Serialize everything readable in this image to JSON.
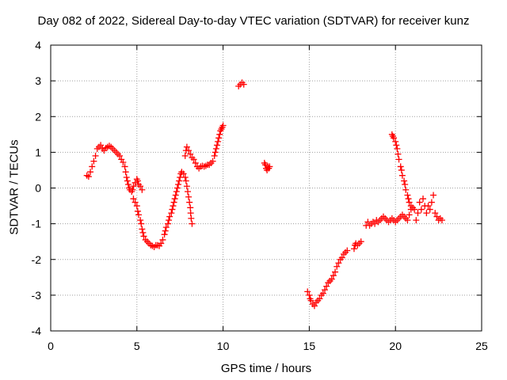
{
  "chart_data": {
    "type": "scatter",
    "title": "Day 082 of 2022, Sidereal Day-to-day VTEC variation (SDTVAR) for receiver kunz",
    "xlabel": "GPS time / hours",
    "ylabel": "SDTVAR / TECUs",
    "xlim": [
      0,
      25
    ],
    "ylim": [
      -4,
      4
    ],
    "xticks": [
      "0",
      "5",
      "10",
      "15",
      "20",
      "25"
    ],
    "yticks": [
      "-4",
      "-3",
      "-2",
      "-1",
      "0",
      "1",
      "2",
      "3",
      "4"
    ],
    "grid": true,
    "marker": "+",
    "color": "#ff0000",
    "series": [
      {
        "points": [
          [
            2.1,
            0.35
          ],
          [
            2.2,
            0.32
          ],
          [
            2.3,
            0.45
          ],
          [
            2.4,
            0.6
          ],
          [
            2.5,
            0.75
          ],
          [
            2.6,
            0.9
          ],
          [
            2.7,
            1.1
          ],
          [
            2.8,
            1.15
          ],
          [
            2.9,
            1.2
          ],
          [
            3.0,
            1.1
          ],
          [
            3.1,
            1.05
          ],
          [
            3.2,
            1.12
          ],
          [
            3.3,
            1.15
          ],
          [
            3.4,
            1.18
          ],
          [
            3.5,
            1.15
          ],
          [
            3.6,
            1.1
          ],
          [
            3.7,
            1.05
          ],
          [
            3.8,
            1.0
          ],
          [
            3.9,
            0.95
          ],
          [
            4.0,
            0.9
          ],
          [
            4.1,
            0.8
          ],
          [
            4.2,
            0.72
          ],
          [
            4.3,
            0.6
          ],
          [
            4.35,
            0.45
          ],
          [
            4.4,
            0.3
          ],
          [
            4.45,
            0.2
          ],
          [
            4.5,
            0.1
          ],
          [
            4.55,
            0.0
          ],
          [
            4.6,
            -0.05
          ],
          [
            4.7,
            -0.1
          ],
          [
            4.75,
            -0.05
          ],
          [
            4.8,
            0.05
          ],
          [
            4.9,
            0.15
          ],
          [
            5.0,
            0.25
          ],
          [
            5.05,
            0.2
          ],
          [
            5.1,
            0.1
          ],
          [
            5.2,
            0.05
          ],
          [
            5.3,
            -0.05
          ],
          [
            4.8,
            -0.3
          ],
          [
            4.9,
            -0.4
          ],
          [
            5.0,
            -0.5
          ],
          [
            5.05,
            -0.65
          ],
          [
            5.1,
            -0.75
          ],
          [
            5.2,
            -0.9
          ],
          [
            5.25,
            -1.0
          ],
          [
            5.3,
            -1.15
          ],
          [
            5.35,
            -1.25
          ],
          [
            5.4,
            -1.35
          ],
          [
            5.5,
            -1.45
          ],
          [
            5.6,
            -1.5
          ],
          [
            5.7,
            -1.55
          ],
          [
            5.8,
            -1.6
          ],
          [
            5.9,
            -1.62
          ],
          [
            6.0,
            -1.65
          ],
          [
            6.1,
            -1.6
          ],
          [
            6.2,
            -1.6
          ],
          [
            6.3,
            -1.62
          ],
          [
            6.4,
            -1.55
          ],
          [
            6.5,
            -1.45
          ],
          [
            6.6,
            -1.3
          ],
          [
            6.65,
            -1.2
          ],
          [
            6.7,
            -1.1
          ],
          [
            6.8,
            -1.0
          ],
          [
            6.85,
            -0.9
          ],
          [
            6.9,
            -0.8
          ],
          [
            7.0,
            -0.7
          ],
          [
            7.05,
            -0.6
          ],
          [
            7.1,
            -0.5
          ],
          [
            7.15,
            -0.4
          ],
          [
            7.2,
            -0.3
          ],
          [
            7.25,
            -0.2
          ],
          [
            7.3,
            -0.1
          ],
          [
            7.35,
            0.0
          ],
          [
            7.4,
            0.1
          ],
          [
            7.45,
            0.2
          ],
          [
            7.5,
            0.3
          ],
          [
            7.55,
            0.4
          ],
          [
            7.6,
            0.45
          ],
          [
            7.7,
            0.4
          ],
          [
            7.8,
            0.3
          ],
          [
            7.85,
            0.2
          ],
          [
            7.9,
            0.05
          ],
          [
            7.95,
            -0.1
          ],
          [
            8.0,
            -0.25
          ],
          [
            8.05,
            -0.4
          ],
          [
            8.1,
            -0.55
          ],
          [
            8.12,
            -0.7
          ],
          [
            8.15,
            -0.85
          ],
          [
            8.2,
            -1.0
          ],
          [
            7.8,
            0.9
          ],
          [
            7.85,
            1.05
          ],
          [
            7.9,
            1.15
          ],
          [
            8.0,
            1.05
          ],
          [
            8.1,
            0.95
          ],
          [
            8.2,
            0.85
          ],
          [
            8.3,
            0.8
          ],
          [
            8.4,
            0.7
          ],
          [
            8.5,
            0.6
          ],
          [
            8.6,
            0.55
          ],
          [
            8.7,
            0.6
          ],
          [
            8.8,
            0.62
          ],
          [
            8.9,
            0.6
          ],
          [
            9.0,
            0.62
          ],
          [
            9.1,
            0.65
          ],
          [
            9.2,
            0.65
          ],
          [
            9.3,
            0.7
          ],
          [
            9.4,
            0.75
          ],
          [
            9.5,
            0.9
          ],
          [
            9.55,
            1.0
          ],
          [
            9.6,
            1.1
          ],
          [
            9.65,
            1.2
          ],
          [
            9.7,
            1.3
          ],
          [
            9.75,
            1.4
          ],
          [
            9.8,
            1.5
          ],
          [
            9.85,
            1.6
          ],
          [
            9.9,
            1.65
          ],
          [
            9.95,
            1.7
          ],
          [
            10.0,
            1.75
          ],
          [
            10.9,
            2.85
          ],
          [
            11.0,
            2.9
          ],
          [
            11.1,
            2.95
          ],
          [
            11.2,
            2.9
          ],
          [
            12.4,
            0.7
          ],
          [
            12.45,
            0.65
          ],
          [
            12.5,
            0.55
          ],
          [
            12.55,
            0.5
          ],
          [
            12.6,
            0.6
          ],
          [
            12.65,
            0.55
          ],
          [
            12.7,
            0.6
          ],
          [
            14.9,
            -2.9
          ],
          [
            15.0,
            -3.0
          ],
          [
            15.05,
            -3.1
          ],
          [
            15.1,
            -3.15
          ],
          [
            15.2,
            -3.25
          ],
          [
            15.3,
            -3.3
          ],
          [
            15.4,
            -3.2
          ],
          [
            15.5,
            -3.15
          ],
          [
            15.6,
            -3.1
          ],
          [
            15.7,
            -3.0
          ],
          [
            15.8,
            -2.95
          ],
          [
            15.9,
            -2.85
          ],
          [
            16.0,
            -2.75
          ],
          [
            16.1,
            -2.65
          ],
          [
            16.2,
            -2.6
          ],
          [
            16.3,
            -2.55
          ],
          [
            16.4,
            -2.45
          ],
          [
            16.5,
            -2.35
          ],
          [
            16.6,
            -2.2
          ],
          [
            16.7,
            -2.1
          ],
          [
            16.8,
            -2.0
          ],
          [
            16.9,
            -1.95
          ],
          [
            17.0,
            -1.85
          ],
          [
            17.1,
            -1.8
          ],
          [
            17.2,
            -1.75
          ],
          [
            17.6,
            -1.7
          ],
          [
            17.65,
            -1.6
          ],
          [
            17.7,
            -1.55
          ],
          [
            17.8,
            -1.6
          ],
          [
            17.9,
            -1.55
          ],
          [
            18.0,
            -1.5
          ],
          [
            18.3,
            -1.05
          ],
          [
            18.4,
            -0.95
          ],
          [
            18.5,
            -1.05
          ],
          [
            18.6,
            -1.0
          ],
          [
            18.7,
            -0.95
          ],
          [
            18.8,
            -1.0
          ],
          [
            18.9,
            -0.9
          ],
          [
            19.0,
            -0.95
          ],
          [
            19.1,
            -0.9
          ],
          [
            19.2,
            -0.85
          ],
          [
            19.3,
            -0.8
          ],
          [
            19.4,
            -0.85
          ],
          [
            19.5,
            -0.9
          ],
          [
            19.6,
            -0.95
          ],
          [
            19.7,
            -0.9
          ],
          [
            19.8,
            -0.85
          ],
          [
            19.9,
            -0.9
          ],
          [
            20.0,
            -0.95
          ],
          [
            20.1,
            -0.9
          ],
          [
            20.2,
            -0.85
          ],
          [
            20.3,
            -0.8
          ],
          [
            20.4,
            -0.75
          ],
          [
            20.5,
            -0.8
          ],
          [
            20.6,
            -0.85
          ],
          [
            20.7,
            -0.9
          ],
          [
            20.8,
            -0.75
          ],
          [
            20.9,
            -0.6
          ],
          [
            21.0,
            -0.55
          ],
          [
            21.1,
            -0.6
          ],
          [
            21.2,
            -0.9
          ],
          [
            19.8,
            1.5
          ],
          [
            19.85,
            1.45
          ],
          [
            19.9,
            1.4
          ],
          [
            20.0,
            1.3
          ],
          [
            20.05,
            1.2
          ],
          [
            20.1,
            1.1
          ],
          [
            20.15,
            0.95
          ],
          [
            20.2,
            0.8
          ],
          [
            20.3,
            0.6
          ],
          [
            20.35,
            0.5
          ],
          [
            20.4,
            0.35
          ],
          [
            20.5,
            0.2
          ],
          [
            20.55,
            0.1
          ],
          [
            20.6,
            -0.05
          ],
          [
            20.7,
            -0.2
          ],
          [
            20.75,
            -0.3
          ],
          [
            20.8,
            -0.4
          ],
          [
            20.9,
            -0.5
          ],
          [
            21.3,
            -0.7
          ],
          [
            21.4,
            -0.4
          ],
          [
            21.5,
            -0.6
          ],
          [
            21.6,
            -0.3
          ],
          [
            21.7,
            -0.5
          ],
          [
            21.8,
            -0.7
          ],
          [
            21.9,
            -0.5
          ],
          [
            22.0,
            -0.6
          ],
          [
            22.1,
            -0.4
          ],
          [
            22.2,
            -0.2
          ],
          [
            22.3,
            -0.7
          ],
          [
            22.4,
            -0.8
          ],
          [
            22.5,
            -0.9
          ],
          [
            22.6,
            -0.85
          ],
          [
            22.7,
            -0.9
          ]
        ]
      }
    ]
  }
}
